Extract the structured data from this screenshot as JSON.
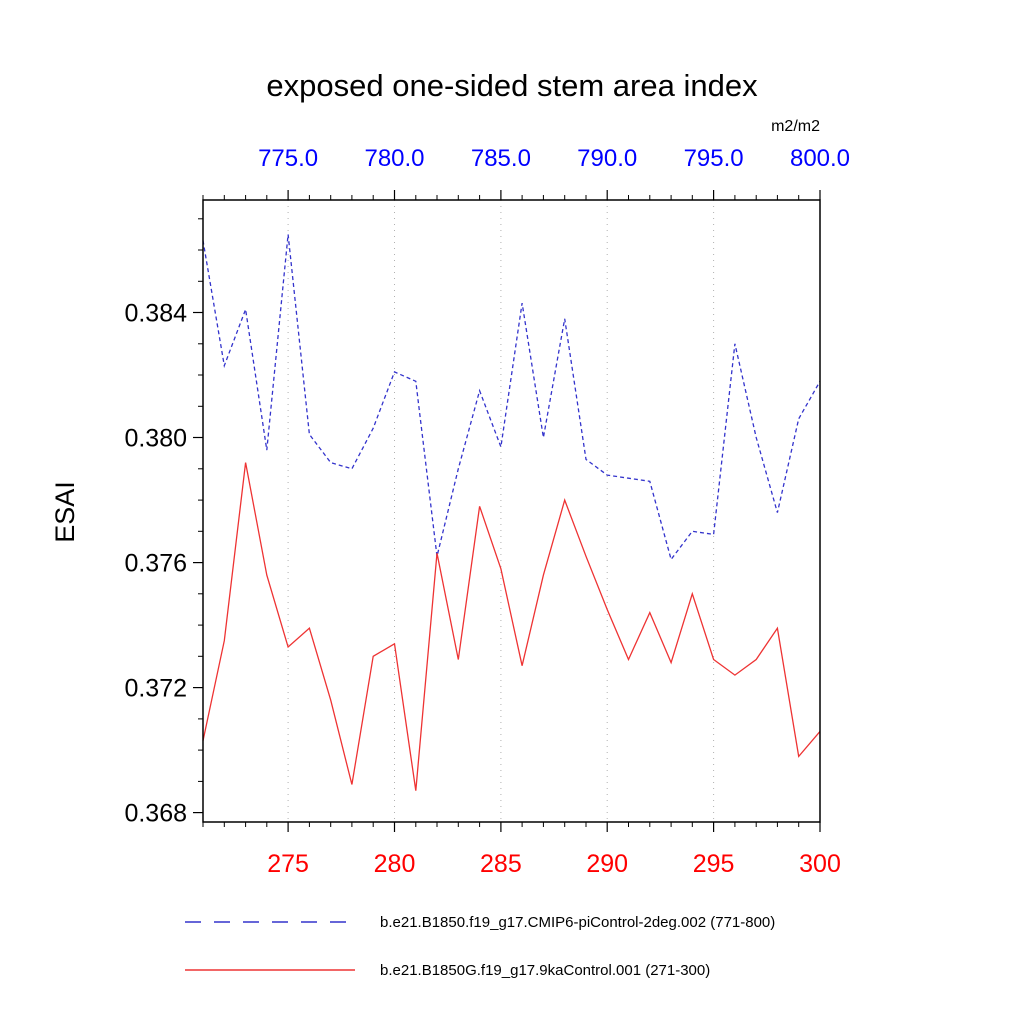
{
  "chart_data": {
    "type": "line",
    "title": "exposed one-sided stem area index",
    "units": "m2/m2",
    "ylabel": "ESAI",
    "ylim": [
      0.3677,
      0.3876
    ],
    "grid": true,
    "grid_x_values": [
      275,
      280,
      285,
      290,
      295
    ],
    "grid_color": "#b0b0b0",
    "frame_color": "#000000",
    "y_axis": {
      "ticks": [
        0.368,
        0.372,
        0.376,
        0.38,
        0.384
      ],
      "labels": [
        "0.368",
        "0.372",
        "0.376",
        "0.380",
        "0.384"
      ],
      "minor_step": 0.001,
      "label_color": "#000000"
    },
    "x_bottom": {
      "range": [
        271,
        300
      ],
      "ticks": [
        275,
        280,
        285,
        290,
        295,
        300
      ],
      "labels": [
        "275",
        "280",
        "285",
        "290",
        "295",
        "300"
      ],
      "minor_step": 1,
      "label_color": "#ff0000"
    },
    "x_top": {
      "range": [
        771,
        800
      ],
      "ticks": [
        775,
        780,
        785,
        790,
        795,
        800
      ],
      "labels": [
        "775.0",
        "780.0",
        "785.0",
        "790.0",
        "795.0",
        "800.0"
      ],
      "minor_step": 1,
      "label_color": "#0000ff"
    },
    "legend_position": "bottom",
    "series": [
      {
        "name": "b.e21.B1850.f19_g17.CMIP6-piControl-2deg.002 (771-800)",
        "axis": "top",
        "color": "#3333cc",
        "line_style": "dashed",
        "x": [
          771,
          772,
          773,
          774,
          775,
          776,
          777,
          778,
          779,
          780,
          781,
          782,
          783,
          784,
          785,
          786,
          787,
          788,
          789,
          790,
          791,
          792,
          793,
          794,
          795,
          796,
          797,
          798,
          799,
          800
        ],
        "values": [
          0.3863,
          0.3823,
          0.3841,
          0.3796,
          0.3865,
          0.3801,
          0.3792,
          0.379,
          0.3803,
          0.3821,
          0.3818,
          0.3762,
          0.379,
          0.3815,
          0.3797,
          0.3843,
          0.38,
          0.3838,
          0.3793,
          0.3788,
          0.3787,
          0.3786,
          0.3761,
          0.377,
          0.3769,
          0.383,
          0.38,
          0.3776,
          0.3806,
          0.3818
        ]
      },
      {
        "name": "b.e21.B1850G.f19_g17.9kaControl.001 (271-300)",
        "axis": "bottom",
        "color": "#ee3333",
        "line_style": "solid",
        "x": [
          271,
          272,
          273,
          274,
          275,
          276,
          277,
          278,
          279,
          280,
          281,
          282,
          283,
          284,
          285,
          286,
          287,
          288,
          289,
          290,
          291,
          292,
          293,
          294,
          295,
          296,
          297,
          298,
          299,
          300
        ],
        "values": [
          0.3703,
          0.3735,
          0.3792,
          0.3756,
          0.3733,
          0.3739,
          0.3716,
          0.3689,
          0.373,
          0.3734,
          0.3687,
          0.3763,
          0.3729,
          0.3778,
          0.3758,
          0.3727,
          0.3756,
          0.378,
          0.3762,
          0.3745,
          0.3729,
          0.3744,
          0.3728,
          0.375,
          0.3729,
          0.3724,
          0.3729,
          0.3739,
          0.3698,
          0.3706
        ]
      }
    ]
  }
}
